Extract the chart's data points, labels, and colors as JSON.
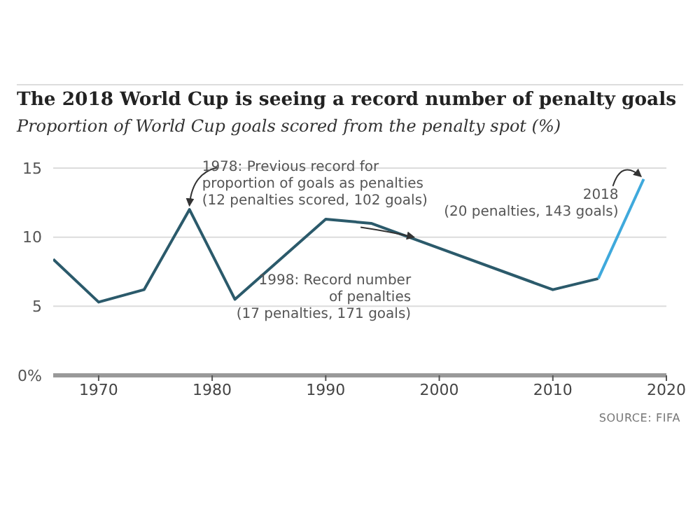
{
  "chart_data": {
    "type": "line",
    "title": "The 2018 World Cup is seeing a record number of penalty goals",
    "subtitle": "Proportion of World Cup goals scored from the penalty spot (%)",
    "x": [
      1966,
      1970,
      1974,
      1978,
      1982,
      1986,
      1990,
      1994,
      1998,
      2002,
      2006,
      2010,
      2014,
      2018
    ],
    "series": [
      {
        "color": "#2b5a6b",
        "values": [
          8.4,
          5.3,
          6.2,
          12.0,
          5.5,
          null,
          11.3,
          11.0,
          9.8,
          null,
          null,
          6.2,
          7.0,
          null
        ]
      },
      {
        "color": "#3fa9dc",
        "values": [
          null,
          null,
          null,
          null,
          null,
          null,
          null,
          null,
          null,
          null,
          null,
          null,
          7.0,
          14.2
        ]
      }
    ],
    "xlim": [
      1966,
      2020
    ],
    "xticks": [
      1970,
      1980,
      1990,
      2000,
      2010,
      2020
    ],
    "ylim": [
      0,
      15
    ],
    "yticks": [
      {
        "value": 0,
        "label": "0%"
      },
      5,
      10,
      15
    ],
    "grid": "y",
    "marker": "none",
    "line_style": "solid",
    "annotations": [
      {
        "text": "1978: Previous record for\nproportion of goals as penalties\n(12 penalties scored, 102 goals)",
        "x": 1978,
        "y": 12.0
      },
      {
        "text": "1998: Record number\nof penalties\n(17 penalties, 171 goals)",
        "x": 1998,
        "y": 9.8
      },
      {
        "text": "2018\n(20 penalties, 143 goals)",
        "x": 2018,
        "y": 14.2
      },
      "SOURCE: FIFA"
    ]
  }
}
